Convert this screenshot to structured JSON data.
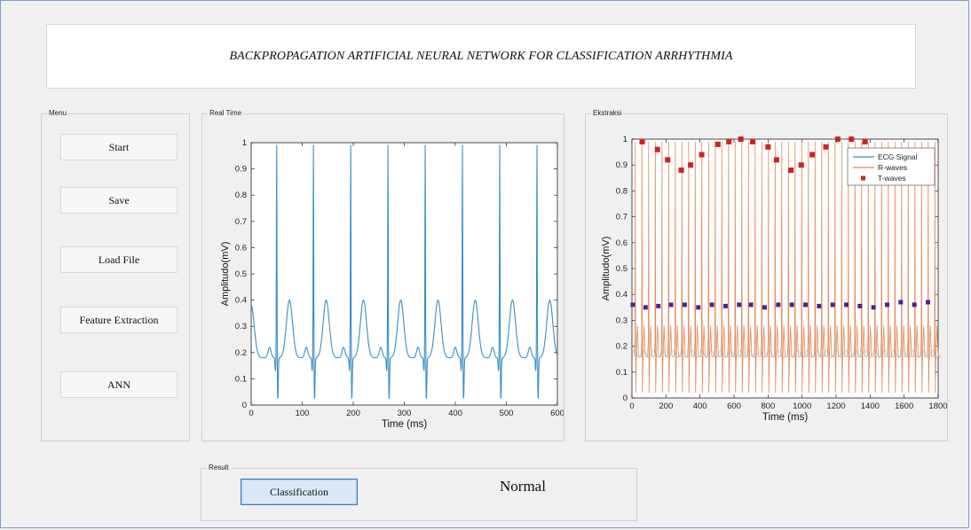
{
  "title": "BACKPROPAGATION ARTIFICIAL NEURAL NETWORK FOR CLASSIFICATION ARRHYTHMIA",
  "menu": {
    "label": "Menu",
    "buttons": [
      "Start",
      "Save",
      "Load File",
      "Feature Extraction",
      "ANN"
    ]
  },
  "realtime": {
    "label": "Real Time"
  },
  "ekstraksi": {
    "label": "Ekstraksi"
  },
  "result": {
    "label": "Result",
    "button": "Classification",
    "value": "Normal"
  },
  "colors": {
    "ecg": "#3a8ec6",
    "rwave": "#e08a5a",
    "twave": "#cc2222",
    "marker": "#5a1a8c"
  },
  "chart_data": [
    {
      "type": "line",
      "xlabel": "Time  (ms)",
      "ylabel": "Amplitudo(mV)",
      "xlim": [
        0,
        600
      ],
      "ylim": [
        0,
        1
      ],
      "xticks": [
        0,
        100,
        200,
        300,
        400,
        500,
        600
      ],
      "yticks": [
        0,
        0.1,
        0.2,
        0.3,
        0.4,
        0.5,
        0.6,
        0.7,
        0.8,
        0.9,
        1
      ],
      "beats_ms": [
        50,
        122,
        195,
        268,
        341,
        414,
        487,
        560
      ],
      "peak": 1.0,
      "baseline": 0.18,
      "grid": false
    },
    {
      "type": "line",
      "xlabel": "Time  (ms)",
      "ylabel": "Amplitudo(mV)",
      "xlim": [
        0,
        1800
      ],
      "ylim": [
        0,
        1
      ],
      "xticks": [
        0,
        200,
        400,
        600,
        800,
        1000,
        1200,
        1400,
        1600,
        1800
      ],
      "yticks": [
        0,
        0.1,
        0.2,
        0.3,
        0.4,
        0.5,
        0.6,
        0.7,
        0.8,
        0.9,
        1
      ],
      "legend": [
        "ECG Signal",
        "R-waves",
        "T-waves"
      ],
      "legend_position": "top-right",
      "t_waves": {
        "x": [
          60,
          150,
          210,
          290,
          345,
          410,
          505,
          570,
          640,
          710,
          800,
          850,
          935,
          995,
          1060,
          1140,
          1210,
          1290,
          1370
        ],
        "y": [
          0.99,
          0.96,
          0.92,
          0.88,
          0.9,
          0.94,
          0.98,
          0.99,
          1.0,
          0.99,
          0.97,
          0.92,
          0.88,
          0.9,
          0.94,
          0.97,
          1.0,
          1.0,
          0.99
        ]
      },
      "markers": {
        "x": [
          5,
          80,
          155,
          230,
          310,
          390,
          470,
          550,
          630,
          700,
          780,
          860,
          940,
          1020,
          1100,
          1180,
          1260,
          1340,
          1420,
          1500,
          1580,
          1660,
          1740
        ],
        "y": [
          0.36,
          0.35,
          0.355,
          0.36,
          0.36,
          0.35,
          0.36,
          0.355,
          0.36,
          0.36,
          0.35,
          0.36,
          0.36,
          0.36,
          0.355,
          0.36,
          0.36,
          0.355,
          0.35,
          0.36,
          0.37,
          0.36,
          0.37
        ]
      },
      "r_wave_count": 46,
      "grid": false
    }
  ]
}
